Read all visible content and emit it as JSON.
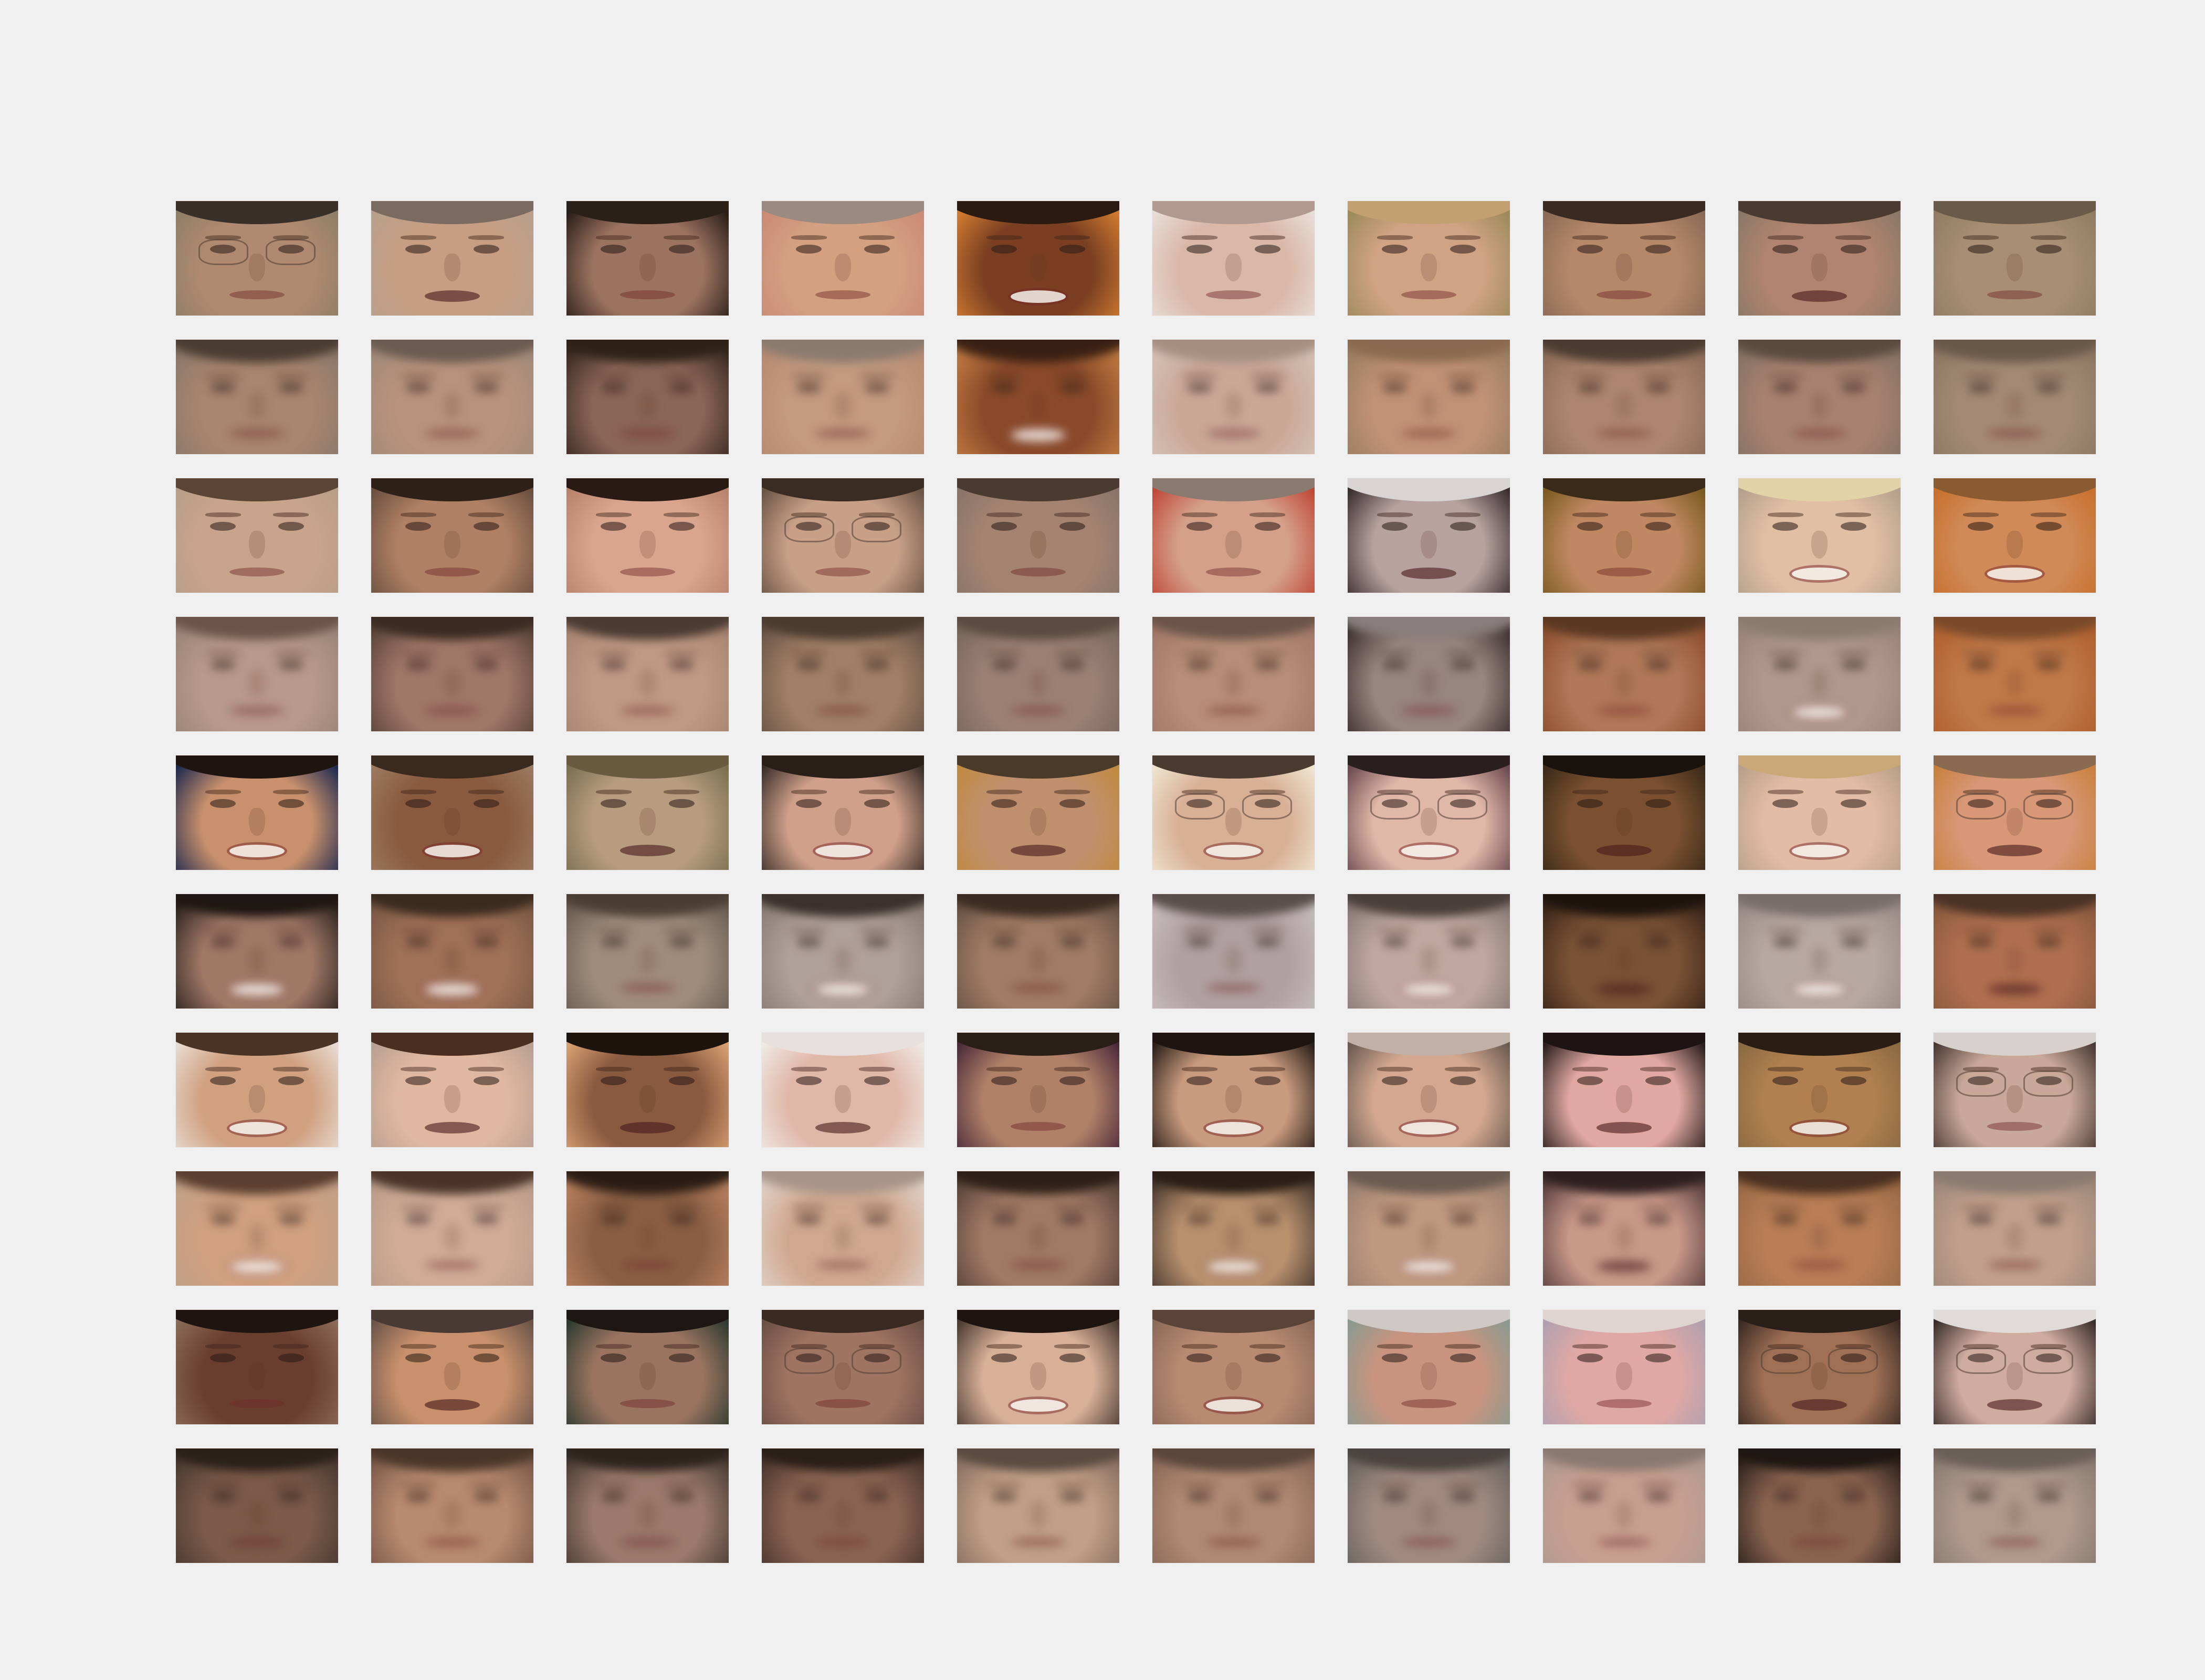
{
  "figure": {
    "background": "#f0f0f0",
    "rows": 10,
    "cols": 10,
    "row_types": [
      "original",
      "reconstruction",
      "original",
      "reconstruction",
      "original",
      "reconstruction",
      "original",
      "reconstruction",
      "original",
      "reconstruction"
    ]
  },
  "tiles": [
    {
      "skin": "#b08a70",
      "bg": "#8f7e66",
      "hair": "#3a302a",
      "glasses": true,
      "mouth": "neutral"
    },
    {
      "skin": "#c79e83",
      "bg": "#b7a08c",
      "hair": "#7a6a60",
      "glasses": false,
      "mouth": "open"
    },
    {
      "skin": "#9c7360",
      "bg": "#2a1e18",
      "hair": "#2a2018",
      "glasses": false,
      "mouth": "neutral"
    },
    {
      "skin": "#d4a082",
      "bg": "#c98b75",
      "hair": "#9a8a80",
      "glasses": false,
      "mouth": "neutral"
    },
    {
      "skin": "#7a3f22",
      "bg": "#d07b30",
      "hair": "#2a1a10",
      "glasses": false,
      "mouth": "smile"
    },
    {
      "skin": "#d9b8a8",
      "bg": "#e8ddd6",
      "hair": "#b09a90",
      "glasses": false,
      "mouth": "neutral"
    },
    {
      "skin": "#d0a384",
      "bg": "#9c8a5a",
      "hair": "#c3a070",
      "glasses": false,
      "mouth": "neutral"
    },
    {
      "skin": "#b5886a",
      "bg": "#8a6a55",
      "hair": "#3a2a22",
      "glasses": false,
      "mouth": "neutral"
    },
    {
      "skin": "#b08470",
      "bg": "#8a7866",
      "hair": "#4a3a30",
      "glasses": false,
      "mouth": "open"
    },
    {
      "skin": "#a88e74",
      "bg": "#8f7c62",
      "hair": "#6a5a48",
      "glasses": false,
      "mouth": "neutral"
    },
    {
      "skin": "#a88670",
      "bg": "#8c7868",
      "hair": "#4a3c32",
      "glasses": false,
      "mouth": "neutral"
    },
    {
      "skin": "#b8937e",
      "bg": "#a28b78",
      "hair": "#6a5a50",
      "glasses": false,
      "mouth": "neutral"
    },
    {
      "skin": "#8a6656",
      "bg": "#3a2a22",
      "hair": "#2e2218",
      "glasses": false,
      "mouth": "neutral"
    },
    {
      "skin": "#c49a80",
      "bg": "#b58a72",
      "hair": "#8a7a6e",
      "glasses": false,
      "mouth": "neutral"
    },
    {
      "skin": "#8a4a2a",
      "bg": "#c07a40",
      "hair": "#3a2014",
      "glasses": false,
      "mouth": "smile"
    },
    {
      "skin": "#caa896",
      "bg": "#d4c2b6",
      "hair": "#a48e80",
      "glasses": false,
      "mouth": "neutral"
    },
    {
      "skin": "#c29276",
      "bg": "#9a7e62",
      "hair": "#8a6a50",
      "glasses": false,
      "mouth": "neutral"
    },
    {
      "skin": "#ae8670",
      "bg": "#8a6c58",
      "hair": "#4a3a30",
      "glasses": false,
      "mouth": "neutral"
    },
    {
      "skin": "#a88270",
      "bg": "#867262",
      "hair": "#5a4a3e",
      "glasses": false,
      "mouth": "neutral"
    },
    {
      "skin": "#a48a74",
      "bg": "#8c7862",
      "hair": "#6a5848",
      "glasses": false,
      "mouth": "neutral"
    },
    {
      "skin": "#c9a48c",
      "bg": "#b89e88",
      "hair": "#5a4434",
      "glasses": false,
      "mouth": "neutral"
    },
    {
      "skin": "#b08064",
      "bg": "#6a5040",
      "hair": "#2e2218",
      "glasses": false,
      "mouth": "neutral"
    },
    {
      "skin": "#d9a58e",
      "bg": "#b7836c",
      "hair": "#2a1a14",
      "glasses": false,
      "mouth": "neutral"
    },
    {
      "skin": "#c8a088",
      "bg": "#6a5444",
      "hair": "#3a2c22",
      "glasses": true,
      "mouth": "neutral"
    },
    {
      "skin": "#a48470",
      "bg": "#8a7468",
      "hair": "#4a3a30",
      "glasses": false,
      "mouth": "neutral"
    },
    {
      "skin": "#d4a08a",
      "bg": "#c04838",
      "hair": "#8a7a70",
      "glasses": false,
      "mouth": "neutral"
    },
    {
      "skin": "#b8a2a0",
      "bg": "#3a2e2e",
      "hair": "#d8d4d4",
      "glasses": false,
      "mouth": "open"
    },
    {
      "skin": "#c08862",
      "bg": "#7a5a20",
      "hair": "#3a2a18",
      "glasses": false,
      "mouth": "neutral"
    },
    {
      "skin": "#e0bfa4",
      "bg": "#b4a08c",
      "hair": "#e2d2a8",
      "glasses": false,
      "mouth": "smile"
    },
    {
      "skin": "#d08a58",
      "bg": "#c8702c",
      "hair": "#8a5a30",
      "glasses": false,
      "mouth": "smile"
    },
    {
      "skin": "#b89a8a",
      "bg": "#9c8478",
      "hair": "#6a5448",
      "glasses": false,
      "mouth": "neutral"
    },
    {
      "skin": "#a07868",
      "bg": "#5a4438",
      "hair": "#3a2a22",
      "glasses": false,
      "mouth": "neutral"
    },
    {
      "skin": "#c09a86",
      "bg": "#a88470",
      "hair": "#4a3a32",
      "glasses": false,
      "mouth": "neutral"
    },
    {
      "skin": "#a08068",
      "bg": "#6a5444",
      "hair": "#4a3a2e",
      "glasses": false,
      "mouth": "neutral"
    },
    {
      "skin": "#9c8074",
      "bg": "#7a685c",
      "hair": "#5a4a40",
      "glasses": false,
      "mouth": "neutral"
    },
    {
      "skin": "#b88e78",
      "bg": "#a27868",
      "hair": "#6a5448",
      "glasses": false,
      "mouth": "neutral"
    },
    {
      "skin": "#988480",
      "bg": "#3c302e",
      "hair": "#8a7e7c",
      "glasses": false,
      "mouth": "neutral"
    },
    {
      "skin": "#b07858",
      "bg": "#8a4e2e",
      "hair": "#5a3822",
      "glasses": false,
      "mouth": "neutral"
    },
    {
      "skin": "#b0988c",
      "bg": "#9a8478",
      "hair": "#8a7a6e",
      "glasses": false,
      "mouth": "smile"
    },
    {
      "skin": "#c07848",
      "bg": "#b0602e",
      "hair": "#7a4a2a",
      "glasses": false,
      "mouth": "neutral"
    },
    {
      "skin": "#c8906c",
      "bg": "#202a50",
      "hair": "#1e1410",
      "glasses": false,
      "mouth": "smile"
    },
    {
      "skin": "#8a5a3e",
      "bg": "#9a7a60",
      "hair": "#3a2a1e",
      "glasses": false,
      "mouth": "smile"
    },
    {
      "skin": "#b89c80",
      "bg": "#7a7050",
      "hair": "#6a5a40",
      "glasses": false,
      "mouth": "open"
    },
    {
      "skin": "#d0a08a",
      "bg": "#3a2e2a",
      "hair": "#2a1e18",
      "glasses": false,
      "mouth": "smile"
    },
    {
      "skin": "#c0906e",
      "bg": "#c08a40",
      "hair": "#4a3a2a",
      "glasses": false,
      "mouth": "open"
    },
    {
      "skin": "#d8b096",
      "bg": "#efe4cf",
      "hair": "#4a3a30",
      "glasses": true,
      "mouth": "smile"
    },
    {
      "skin": "#e0b8a8",
      "bg": "#6a4a50",
      "hair": "#2a1e1e",
      "glasses": true,
      "mouth": "smile"
    },
    {
      "skin": "#7a5030",
      "bg": "#3a2a18",
      "hair": "#1a120c",
      "glasses": false,
      "mouth": "open"
    },
    {
      "skin": "#e2bca4",
      "bg": "#b8a088",
      "hair": "#caa878",
      "glasses": false,
      "mouth": "smile"
    },
    {
      "skin": "#d89878",
      "bg": "#c8803e",
      "hair": "#8a6a50",
      "glasses": true,
      "mouth": "open"
    },
    {
      "skin": "#a07866",
      "bg": "#2e2420",
      "hair": "#1e1612",
      "glasses": false,
      "mouth": "smile"
    },
    {
      "skin": "#a07058",
      "bg": "#7a5a44",
      "hair": "#3a2a1e",
      "glasses": false,
      "mouth": "smile"
    },
    {
      "skin": "#a08c7c",
      "bg": "#6a5e52",
      "hair": "#4a3e34",
      "glasses": false,
      "mouth": "neutral"
    },
    {
      "skin": "#b0a09a",
      "bg": "#8a7c76",
      "hair": "#3a302c",
      "glasses": false,
      "mouth": "smile"
    },
    {
      "skin": "#a07c66",
      "bg": "#6a5444",
      "hair": "#3a2a20",
      "glasses": false,
      "mouth": "neutral"
    },
    {
      "skin": "#b0a0a0",
      "bg": "#c8bcbc",
      "hair": "#5a4e4a",
      "glasses": false,
      "mouth": "neutral"
    },
    {
      "skin": "#c0a8a0",
      "bg": "#8a7a76",
      "hair": "#4a3e3a",
      "glasses": false,
      "mouth": "smile"
    },
    {
      "skin": "#7a5236",
      "bg": "#3a2618",
      "hair": "#1e140e",
      "glasses": false,
      "mouth": "open"
    },
    {
      "skin": "#b8a8a4",
      "bg": "#9a8c88",
      "hair": "#7a6e6a",
      "glasses": false,
      "mouth": "smile"
    },
    {
      "skin": "#b07050",
      "bg": "#8a5a3e",
      "hair": "#4a3224",
      "glasses": false,
      "mouth": "open"
    },
    {
      "skin": "#d0a080",
      "bg": "#e8dad0",
      "hair": "#4a3426",
      "glasses": false,
      "mouth": "smile"
    },
    {
      "skin": "#e0b8a2",
      "bg": "#b8a090",
      "hair": "#4a2e22",
      "glasses": false,
      "mouth": "open"
    },
    {
      "skin": "#8a5a40",
      "bg": "#d8a070",
      "hair": "#1e140e",
      "glasses": false,
      "mouth": "open"
    },
    {
      "skin": "#e0b8a8",
      "bg": "#efe8e4",
      "hair": "#e8e0dc",
      "glasses": false,
      "mouth": "open"
    },
    {
      "skin": "#b08068",
      "bg": "#4a2a3a",
      "hair": "#2a1e18",
      "glasses": false,
      "mouth": "neutral"
    },
    {
      "skin": "#c89a7e",
      "bg": "#2a1e18",
      "hair": "#1e1410",
      "glasses": false,
      "mouth": "smile"
    },
    {
      "skin": "#d4a890",
      "bg": "#6a5a50",
      "hair": "#c0b0a8",
      "glasses": false,
      "mouth": "smile"
    },
    {
      "skin": "#e0a8a0",
      "bg": "#2a1e1e",
      "hair": "#1e1414",
      "glasses": false,
      "mouth": "open"
    },
    {
      "skin": "#b08050",
      "bg": "#8a6a40",
      "hair": "#2a1e14",
      "glasses": false,
      "mouth": "smile"
    },
    {
      "skin": "#c8a898",
      "bg": "#4a3a34",
      "hair": "#d8d0cc",
      "glasses": true,
      "mouth": "neutral"
    },
    {
      "skin": "#d0a080",
      "bg": "#c0a088",
      "hair": "#5a3e2e",
      "glasses": false,
      "mouth": "smile"
    },
    {
      "skin": "#d0ac98",
      "bg": "#b89c88",
      "hair": "#4a3428",
      "glasses": false,
      "mouth": "neutral"
    },
    {
      "skin": "#8a5e44",
      "bg": "#b8805e",
      "hair": "#2a1c14",
      "glasses": false,
      "mouth": "neutral"
    },
    {
      "skin": "#d0a890",
      "bg": "#e0d0c4",
      "hair": "#a89488",
      "glasses": false,
      "mouth": "neutral"
    },
    {
      "skin": "#a07a66",
      "bg": "#5a4438",
      "hair": "#2e2018",
      "glasses": false,
      "mouth": "neutral"
    },
    {
      "skin": "#b8906e",
      "bg": "#4a3a30",
      "hair": "#2a1e16",
      "glasses": false,
      "mouth": "smile"
    },
    {
      "skin": "#c09a80",
      "bg": "#9a8070",
      "hair": "#6a5a50",
      "glasses": false,
      "mouth": "smile"
    },
    {
      "skin": "#c89888",
      "bg": "#5a4040",
      "hair": "#2e2020",
      "glasses": false,
      "mouth": "open"
    },
    {
      "skin": "#b87e56",
      "bg": "#9a6a44",
      "hair": "#4a3020",
      "glasses": false,
      "mouth": "neutral"
    },
    {
      "skin": "#c0a08c",
      "bg": "#a08878",
      "hair": "#8a7a70",
      "glasses": false,
      "mouth": "neutral"
    },
    {
      "skin": "#6a3e2e",
      "bg": "#8a6a58",
      "hair": "#1e1410",
      "glasses": false,
      "mouth": "neutral"
    },
    {
      "skin": "#c8906c",
      "bg": "#6a5448",
      "hair": "#4a3a34",
      "glasses": false,
      "mouth": "open"
    },
    {
      "skin": "#9a7460",
      "bg": "#2e3a30",
      "hair": "#1e1612",
      "glasses": false,
      "mouth": "neutral"
    },
    {
      "skin": "#a07462",
      "bg": "#6a5044",
      "hair": "#3a2a22",
      "glasses": true,
      "mouth": "neutral"
    },
    {
      "skin": "#d8b098",
      "bg": "#4a3a30",
      "hair": "#1e1410",
      "glasses": false,
      "mouth": "smile"
    },
    {
      "skin": "#b88a72",
      "bg": "#8a6a58",
      "hair": "#5a4438",
      "glasses": false,
      "mouth": "smile"
    },
    {
      "skin": "#c89480",
      "bg": "#8a9a90",
      "hair": "#d0c8c4",
      "glasses": false,
      "mouth": "neutral"
    },
    {
      "skin": "#e0a8a4",
      "bg": "#b0a0b0",
      "hair": "#e0d4d0",
      "glasses": false,
      "mouth": "neutral"
    },
    {
      "skin": "#a07056",
      "bg": "#3a2a22",
      "hair": "#2a1e18",
      "glasses": true,
      "mouth": "open"
    },
    {
      "skin": "#d0aca0",
      "bg": "#3a2e2a",
      "hair": "#e0dad8",
      "glasses": true,
      "mouth": "open"
    },
    {
      "skin": "#7a5a48",
      "bg": "#4a3a30",
      "hair": "#2a201a",
      "glasses": false,
      "mouth": "neutral"
    },
    {
      "skin": "#b88a70",
      "bg": "#7a5a48",
      "hair": "#4a3628",
      "glasses": false,
      "mouth": "neutral"
    },
    {
      "skin": "#9a7a6a",
      "bg": "#4a3c34",
      "hair": "#2e241e",
      "glasses": false,
      "mouth": "neutral"
    },
    {
      "skin": "#8a6452",
      "bg": "#4a362c",
      "hair": "#2a1e18",
      "glasses": false,
      "mouth": "neutral"
    },
    {
      "skin": "#c0a088",
      "bg": "#8a7060",
      "hair": "#5a4a40",
      "glasses": false,
      "mouth": "neutral"
    },
    {
      "skin": "#b08a74",
      "bg": "#8a6a58",
      "hair": "#5a463a",
      "glasses": false,
      "mouth": "neutral"
    },
    {
      "skin": "#a08a80",
      "bg": "#6a6460",
      "hair": "#4a423e",
      "glasses": false,
      "mouth": "neutral"
    },
    {
      "skin": "#c8a090",
      "bg": "#b09a90",
      "hair": "#8a7870",
      "glasses": false,
      "mouth": "neutral"
    },
    {
      "skin": "#8a6450",
      "bg": "#2e221c",
      "hair": "#1e1612",
      "glasses": false,
      "mouth": "neutral"
    },
    {
      "skin": "#b09a8c",
      "bg": "#8a7a70",
      "hair": "#6a5e58",
      "glasses": false,
      "mouth": "neutral"
    }
  ]
}
